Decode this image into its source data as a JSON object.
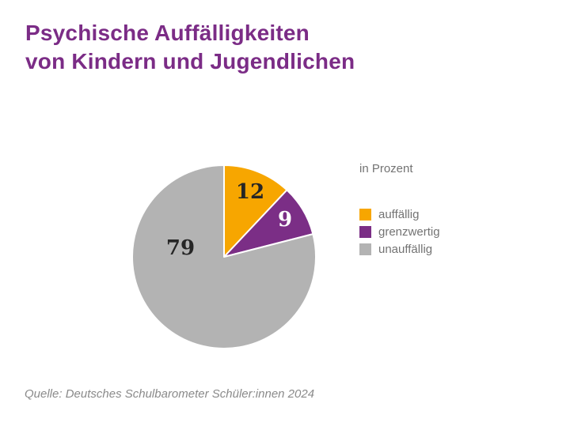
{
  "header": {
    "title_line1": "Psychische Auffälligkeiten",
    "title_line2": "von Kindern und Jugendlichen"
  },
  "legend": {
    "unit_label": "in Prozent"
  },
  "footer": {
    "source": "Quelle: Deutsches Schulbarometer Schüler:innen 2024"
  },
  "colors": {
    "title_text": "#7B2C86",
    "background": "#FFFFFF",
    "legend_text": "#737373",
    "source_text": "#8A8A8A",
    "slice_border": "#FFFFFF"
  },
  "chart_data": {
    "type": "pie",
    "title": "Psychische Auffälligkeiten von Kindern und Jugendlichen",
    "unit": "Prozent",
    "total": 100,
    "start_angle_from_north_deg": 0,
    "direction": "clockwise",
    "legend_position": "right",
    "slices": [
      {
        "key": "auffaellig",
        "name": "auffällig",
        "value": 12,
        "color": "#F7A600",
        "label_color": "#262626",
        "label_offset": [
          33,
          -83
        ]
      },
      {
        "key": "grenzwertig",
        "name": "grenzwertig",
        "value": 9,
        "color": "#7B2E86",
        "label_color": "#FFFFFF",
        "label_offset": [
          77,
          -48
        ]
      },
      {
        "key": "unauffaellig",
        "name": "unauffällig",
        "value": 79,
        "color": "#B3B3B3",
        "label_color": "#262626",
        "label_offset": [
          -55,
          -12
        ]
      }
    ]
  }
}
